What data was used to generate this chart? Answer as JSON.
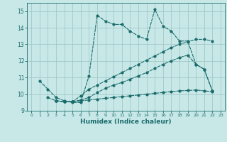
{
  "xlabel": "Humidex (Indice chaleur)",
  "bg_color": "#c8e8e8",
  "grid_color": "#a0c8c8",
  "line_color": "#1a6b6b",
  "ylim": [
    9,
    15.5
  ],
  "xlim": [
    -0.5,
    23.5
  ],
  "yticks": [
    9,
    10,
    11,
    12,
    13,
    14,
    15
  ],
  "xticks": [
    0,
    1,
    2,
    3,
    4,
    5,
    6,
    7,
    8,
    9,
    10,
    11,
    12,
    13,
    14,
    15,
    16,
    17,
    18,
    19,
    20,
    21,
    22,
    23
  ],
  "line1_x": [
    1,
    2,
    3,
    4,
    5,
    6,
    7,
    8,
    9,
    10,
    11,
    12,
    13,
    14,
    15,
    16,
    17,
    18,
    19,
    20,
    21,
    22
  ],
  "line1_y": [
    10.8,
    10.3,
    9.8,
    9.6,
    9.5,
    9.5,
    11.1,
    14.75,
    14.4,
    14.2,
    14.2,
    13.8,
    13.5,
    13.3,
    15.1,
    14.1,
    13.8,
    13.2,
    13.2,
    11.8,
    11.5,
    10.2
  ],
  "line2_x": [
    2,
    3,
    4,
    5,
    6,
    7,
    8,
    9,
    10,
    11,
    12,
    13,
    14,
    15,
    16,
    17,
    18,
    19,
    20,
    21,
    22
  ],
  "line2_y": [
    9.8,
    9.6,
    9.55,
    9.55,
    9.9,
    10.3,
    10.55,
    10.8,
    11.05,
    11.3,
    11.55,
    11.8,
    12.05,
    12.3,
    12.55,
    12.8,
    13.0,
    13.15,
    13.3,
    13.3,
    13.2
  ],
  "line3_x": [
    3,
    4,
    5,
    6,
    7,
    8,
    9,
    10,
    11,
    12,
    13,
    14,
    15,
    16,
    17,
    18,
    19,
    20,
    21,
    22
  ],
  "line3_y": [
    9.6,
    9.55,
    9.55,
    9.6,
    9.65,
    9.7,
    9.75,
    9.8,
    9.85,
    9.9,
    9.95,
    10.0,
    10.05,
    10.1,
    10.15,
    10.2,
    10.22,
    10.25,
    10.2,
    10.15
  ],
  "line4_x": [
    3,
    4,
    5,
    6,
    7,
    8,
    9,
    10,
    11,
    12,
    13,
    14,
    15,
    16,
    17,
    18,
    19,
    20,
    21,
    22
  ],
  "line4_y": [
    9.6,
    9.55,
    9.55,
    9.65,
    9.8,
    10.1,
    10.35,
    10.55,
    10.7,
    10.9,
    11.1,
    11.3,
    11.55,
    11.8,
    12.0,
    12.2,
    12.35,
    11.8,
    11.5,
    10.2
  ],
  "tick_fontsize": 5.5,
  "xlabel_fontsize": 6.5
}
